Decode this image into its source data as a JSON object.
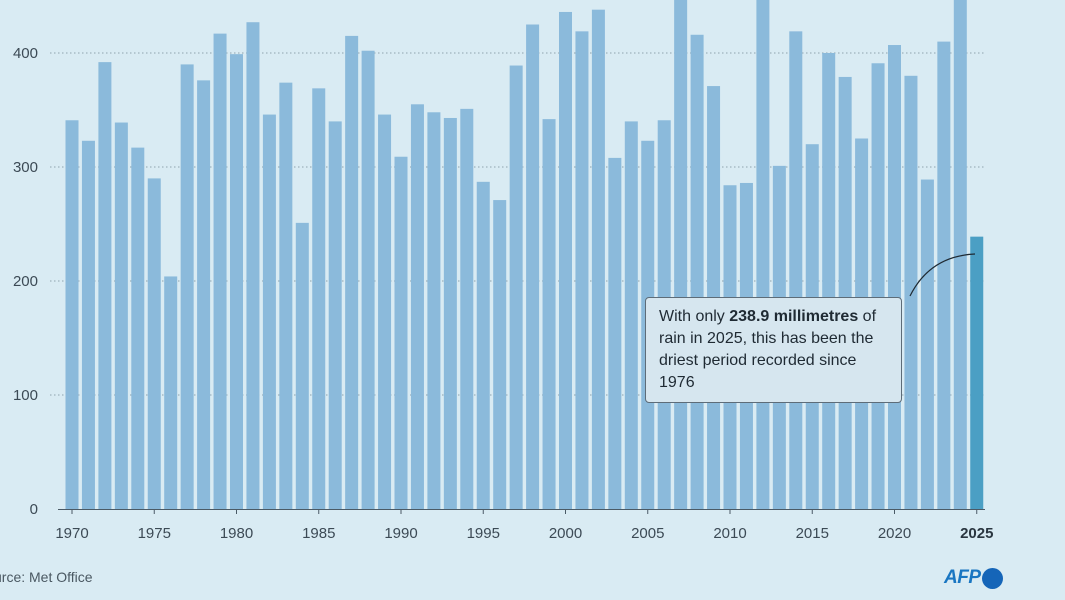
{
  "chart_data": {
    "type": "bar",
    "x": [
      1970,
      1971,
      1972,
      1973,
      1974,
      1975,
      1976,
      1977,
      1978,
      1979,
      1980,
      1981,
      1982,
      1983,
      1984,
      1985,
      1986,
      1987,
      1988,
      1989,
      1990,
      1991,
      1992,
      1993,
      1994,
      1995,
      1996,
      1997,
      1998,
      1999,
      2000,
      2001,
      2002,
      2003,
      2004,
      2005,
      2006,
      2007,
      2008,
      2009,
      2010,
      2011,
      2012,
      2013,
      2014,
      2015,
      2016,
      2017,
      2018,
      2019,
      2020,
      2021,
      2022,
      2023,
      2024,
      2025
    ],
    "values": [
      341,
      323,
      392,
      339,
      317,
      290,
      204,
      390,
      376,
      417,
      399,
      427,
      346,
      374,
      251,
      369,
      340,
      415,
      402,
      346,
      309,
      355,
      348,
      343,
      351,
      287,
      271,
      389,
      425,
      342,
      436,
      419,
      438,
      308,
      340,
      323,
      341,
      460,
      416,
      371,
      284,
      286,
      460,
      301,
      419,
      320,
      400,
      379,
      325,
      391,
      407,
      380,
      289,
      410,
      460,
      238.9
    ],
    "highlight_index": 55,
    "ylim": [
      0,
      450
    ],
    "yticks": [
      0,
      100,
      200,
      300,
      400
    ],
    "xticks": [
      1970,
      1975,
      1980,
      1985,
      1990,
      1995,
      2000,
      2005,
      2010,
      2015,
      2020,
      2025
    ],
    "grid": true,
    "colors": {
      "bar": "#8bbadb",
      "highlight": "#4b9fc4",
      "background": "#d9ebf3",
      "grid": "#8fa3ae",
      "axis": "#4a5a66"
    }
  },
  "annotation": {
    "pre": "With only ",
    "bold": "238.9 millimetres",
    "post": " of rain in 2025, this has been the driest period recorded since 1976"
  },
  "source": "urce: Met Office",
  "logo": {
    "text": "AFP",
    "icon": "afp-circle-icon",
    "color": "#1565b8"
  }
}
